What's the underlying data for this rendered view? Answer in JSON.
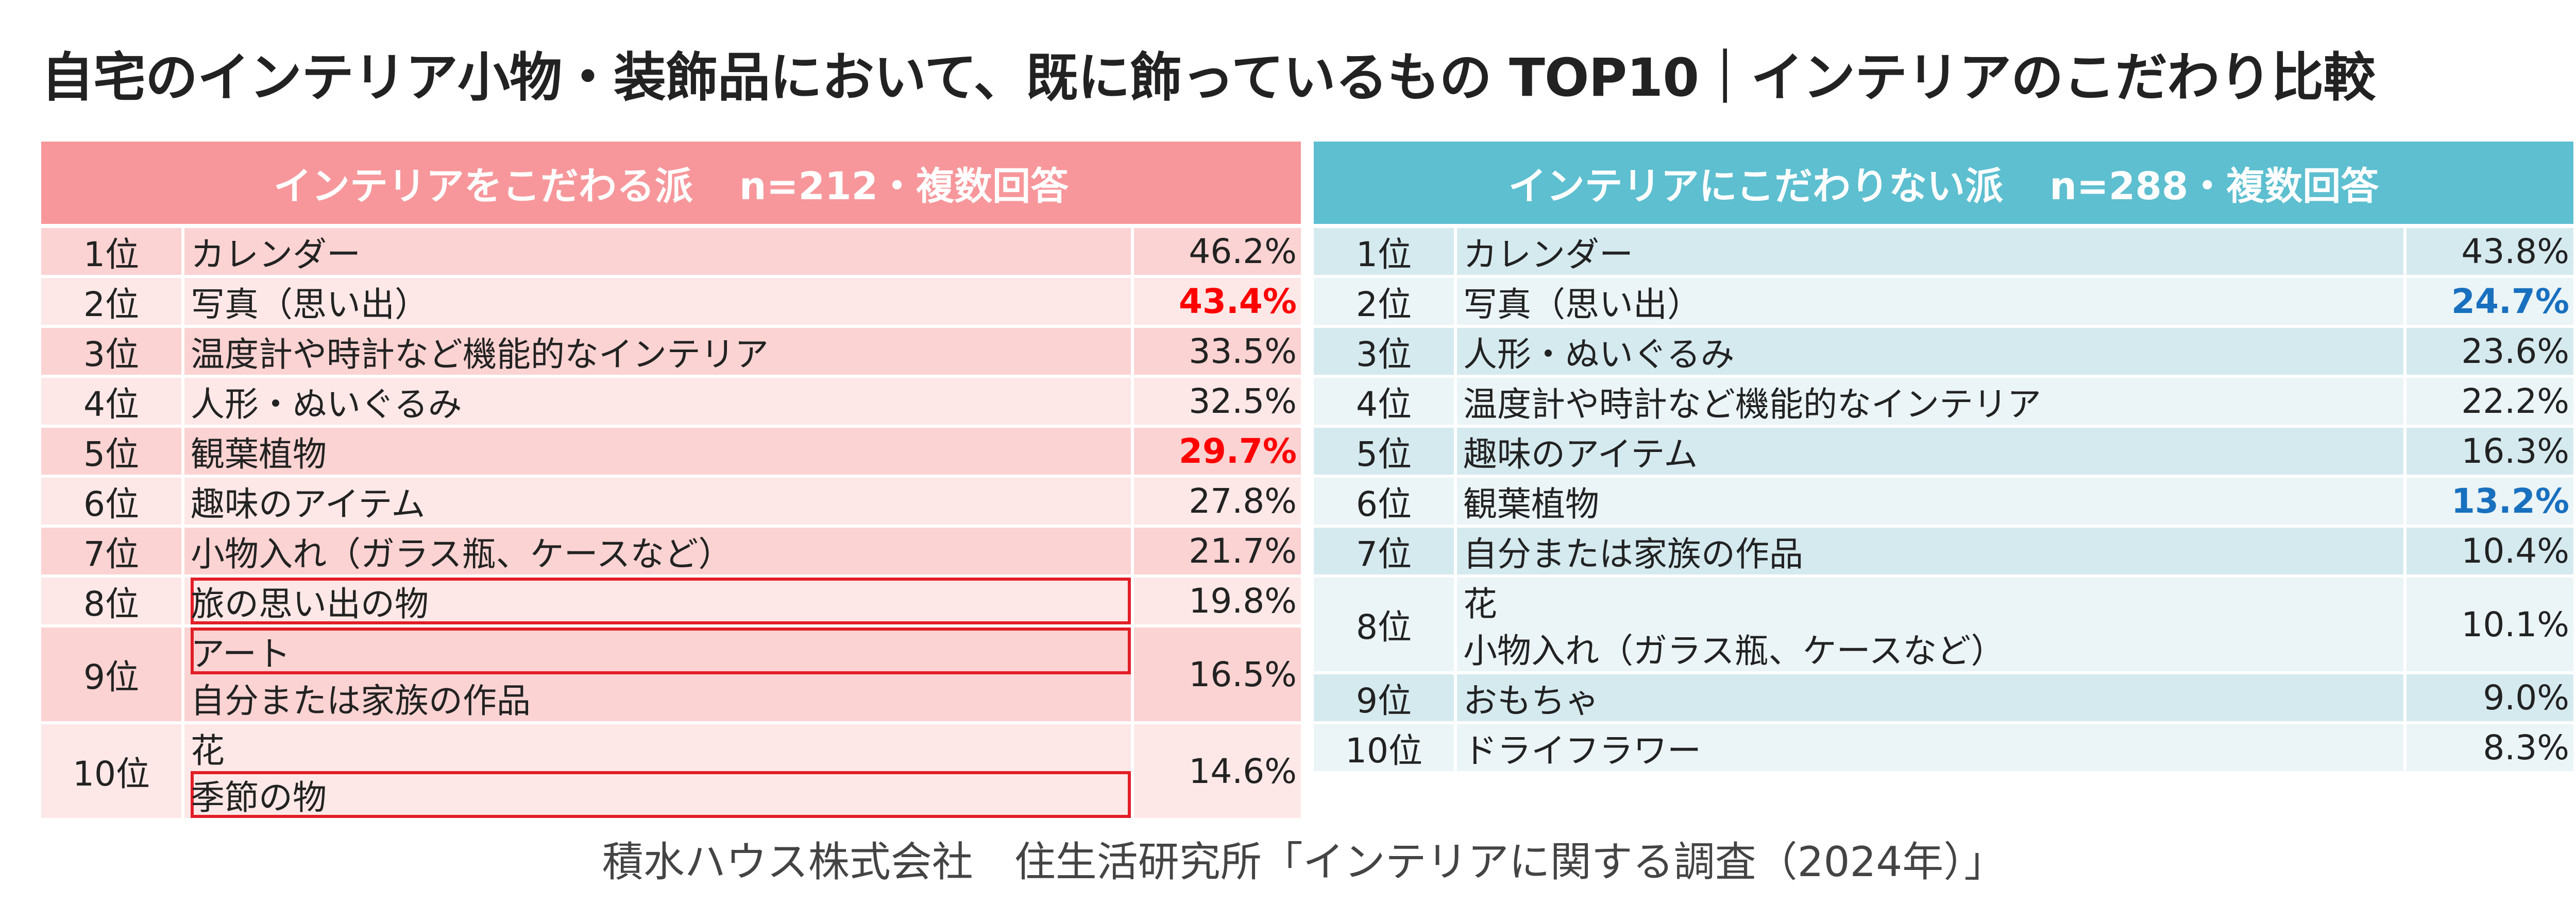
{
  "title": "自宅のインテリア小物・装飾品において、既に飾っているもの TOP10｜インテリアのこだわり比較",
  "chart_data": [
    {
      "type": "table",
      "group": "インテリアをこだわる派",
      "sample": "n=212・複数回答",
      "accent": "#f7979b",
      "highlight_color": "#ff0000",
      "rows": [
        {
          "rank": "1位",
          "items": [
            {
              "text": "カレンダー"
            }
          ],
          "value": 46.2,
          "value_label": "46.2%"
        },
        {
          "rank": "2位",
          "items": [
            {
              "text": "写真（思い出）"
            }
          ],
          "value": 43.4,
          "value_label": "43.4%",
          "emphasis": true
        },
        {
          "rank": "3位",
          "items": [
            {
              "text": "温度計や時計など機能的なインテリア"
            }
          ],
          "value": 33.5,
          "value_label": "33.5%"
        },
        {
          "rank": "4位",
          "items": [
            {
              "text": "人形・ぬいぐるみ"
            }
          ],
          "value": 32.5,
          "value_label": "32.5%"
        },
        {
          "rank": "5位",
          "items": [
            {
              "text": "観葉植物"
            }
          ],
          "value": 29.7,
          "value_label": "29.7%",
          "emphasis": true
        },
        {
          "rank": "6位",
          "items": [
            {
              "text": "趣味のアイテム"
            }
          ],
          "value": 27.8,
          "value_label": "27.8%"
        },
        {
          "rank": "7位",
          "items": [
            {
              "text": "小物入れ（ガラス瓶、ケースなど）"
            }
          ],
          "value": 21.7,
          "value_label": "21.7%"
        },
        {
          "rank": "8位",
          "items": [
            {
              "text": "旅の思い出の物",
              "boxed": true
            }
          ],
          "value": 19.8,
          "value_label": "19.8%"
        },
        {
          "rank": "9位",
          "items": [
            {
              "text": "アート",
              "boxed": true
            },
            {
              "text": "自分または家族の作品"
            }
          ],
          "value": 16.5,
          "value_label": "16.5%"
        },
        {
          "rank": "10位",
          "items": [
            {
              "text": "花"
            },
            {
              "text": "季節の物",
              "boxed": true
            }
          ],
          "value": 14.6,
          "value_label": "14.6%"
        }
      ]
    },
    {
      "type": "table",
      "group": "インテリアにこだわりない派",
      "sample": "n=288・複数回答",
      "accent": "#5dbfd0",
      "highlight_color": "#1870bf",
      "rows": [
        {
          "rank": "1位",
          "items": [
            {
              "text": "カレンダー"
            }
          ],
          "value": 43.8,
          "value_label": "43.8%"
        },
        {
          "rank": "2位",
          "items": [
            {
              "text": "写真（思い出）"
            }
          ],
          "value": 24.7,
          "value_label": "24.7%",
          "emphasis": true
        },
        {
          "rank": "3位",
          "items": [
            {
              "text": "人形・ぬいぐるみ"
            }
          ],
          "value": 23.6,
          "value_label": "23.6%"
        },
        {
          "rank": "4位",
          "items": [
            {
              "text": "温度計や時計など機能的なインテリア"
            }
          ],
          "value": 22.2,
          "value_label": "22.2%"
        },
        {
          "rank": "5位",
          "items": [
            {
              "text": "趣味のアイテム"
            }
          ],
          "value": 16.3,
          "value_label": "16.3%"
        },
        {
          "rank": "6位",
          "items": [
            {
              "text": "観葉植物"
            }
          ],
          "value": 13.2,
          "value_label": "13.2%",
          "emphasis": true
        },
        {
          "rank": "7位",
          "items": [
            {
              "text": "自分または家族の作品"
            }
          ],
          "value": 10.4,
          "value_label": "10.4%"
        },
        {
          "rank": "8位",
          "items": [
            {
              "text": "花"
            },
            {
              "text": "小物入れ（ガラス瓶、ケースなど）"
            }
          ],
          "value": 10.1,
          "value_label": "10.1%"
        },
        {
          "rank": "9位",
          "items": [
            {
              "text": "おもちゃ"
            }
          ],
          "value": 9.0,
          "value_label": "9.0%"
        },
        {
          "rank": "10位",
          "items": [
            {
              "text": "ドライフラワー"
            }
          ],
          "value": 8.3,
          "value_label": "8.3%"
        }
      ]
    }
  ],
  "source": "積水ハウス株式会社　住生活研究所「インテリアに関する調査（2024年）」"
}
